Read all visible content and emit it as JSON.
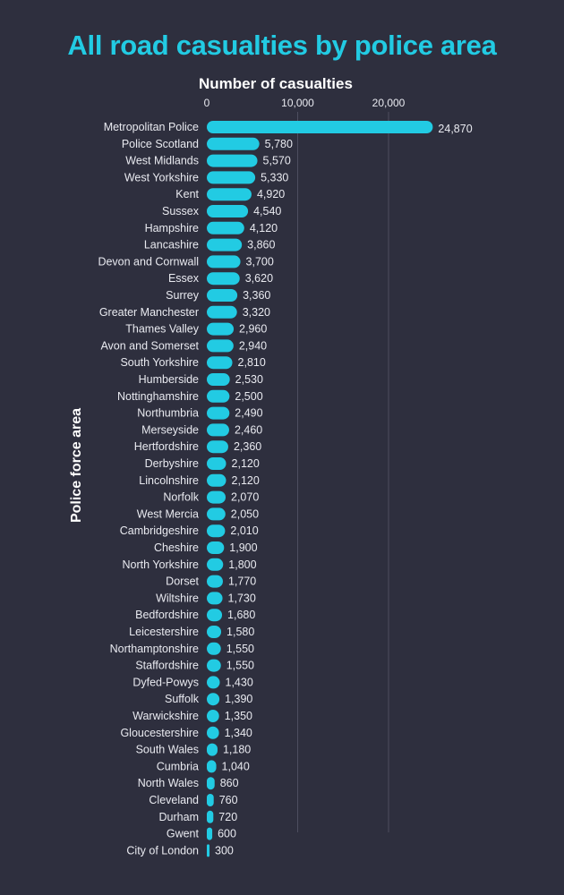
{
  "chart_data": {
    "type": "bar",
    "orientation": "horizontal",
    "title": "All road casualties by police area",
    "xlabel": "Number of casualties",
    "ylabel": "Police force area",
    "xlim": [
      0,
      25000
    ],
    "x_ticks": [
      "0",
      "10,000",
      "20,000"
    ],
    "x_tick_values": [
      0,
      10000,
      20000
    ],
    "grid": true,
    "bar_color": "#22cbe3",
    "background_color": "#2e2f3e",
    "categories": [
      "Metropolitan Police",
      "Police Scotland",
      "West Midlands",
      "West Yorkshire",
      "Kent",
      "Sussex",
      "Hampshire",
      "Lancashire",
      "Devon and Cornwall",
      "Essex",
      "Surrey",
      "Greater Manchester",
      "Thames Valley",
      "Avon and Somerset",
      "South Yorkshire",
      "Humberside",
      "Nottinghamshire",
      "Northumbria",
      "Merseyside",
      "Hertfordshire",
      "Derbyshire",
      "Lincolnshire",
      "Norfolk",
      "West Mercia",
      "Cambridgeshire",
      "Cheshire",
      "North Yorkshire",
      "Dorset",
      "Wiltshire",
      "Bedfordshire",
      "Leicestershire",
      "Northamptonshire",
      "Staffordshire",
      "Dyfed-Powys",
      "Suffolk",
      "Warwickshire",
      "Gloucestershire",
      "South Wales",
      "Cumbria",
      "North Wales",
      "Cleveland",
      "Durham",
      "Gwent",
      "City of London"
    ],
    "values": [
      24870,
      5780,
      5570,
      5330,
      4920,
      4540,
      4120,
      3860,
      3700,
      3620,
      3360,
      3320,
      2960,
      2940,
      2810,
      2530,
      2500,
      2490,
      2460,
      2360,
      2120,
      2120,
      2070,
      2050,
      2010,
      1900,
      1800,
      1770,
      1730,
      1680,
      1580,
      1550,
      1550,
      1430,
      1390,
      1350,
      1340,
      1180,
      1040,
      860,
      760,
      720,
      600,
      300
    ],
    "value_labels": [
      "24,870",
      "5,780",
      "5,570",
      "5,330",
      "4,920",
      "4,540",
      "4,120",
      "3,860",
      "3,700",
      "3,620",
      "3,360",
      "3,320",
      "2,960",
      "2,940",
      "2,810",
      "2,530",
      "2,500",
      "2,490",
      "2,460",
      "2,360",
      "2,120",
      "2,120",
      "2,070",
      "2,050",
      "2,010",
      "1,900",
      "1,800",
      "1,770",
      "1,730",
      "1,680",
      "1,580",
      "1,550",
      "1,550",
      "1,430",
      "1,390",
      "1,350",
      "1,340",
      "1,180",
      "1,040",
      "860",
      "760",
      "720",
      "600",
      "300"
    ]
  }
}
